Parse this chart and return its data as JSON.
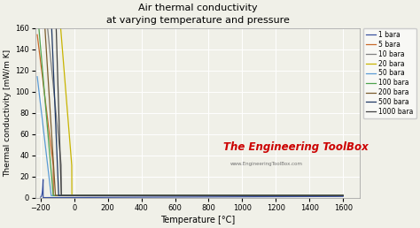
{
  "title": "Air thermal conductivity",
  "subtitle": "at varying temperature and pressure",
  "xlabel": "Temperature [°C]",
  "ylabel": "Thermal conductivity [mW/m K]",
  "xlim": [
    -230,
    1700
  ],
  "ylim": [
    0,
    160
  ],
  "xticks": [
    -200,
    0,
    200,
    400,
    600,
    800,
    1000,
    1200,
    1400,
    1600
  ],
  "yticks": [
    0,
    20,
    40,
    60,
    80,
    100,
    120,
    140,
    160
  ],
  "pressures": [
    1,
    5,
    10,
    20,
    50,
    100,
    200,
    500,
    1000
  ],
  "colors": {
    "1": "#3a52a0",
    "5": "#c8692a",
    "10": "#808080",
    "20": "#c8b400",
    "50": "#5b9bd5",
    "100": "#4ea34e",
    "200": "#7b5c2e",
    "500": "#1f3864",
    "1000": "#404040"
  },
  "watermark": "The Engineering ToolBox",
  "watermark_url": "www.EngineeringToolBox.com",
  "bg_color": "#f0f0e8"
}
